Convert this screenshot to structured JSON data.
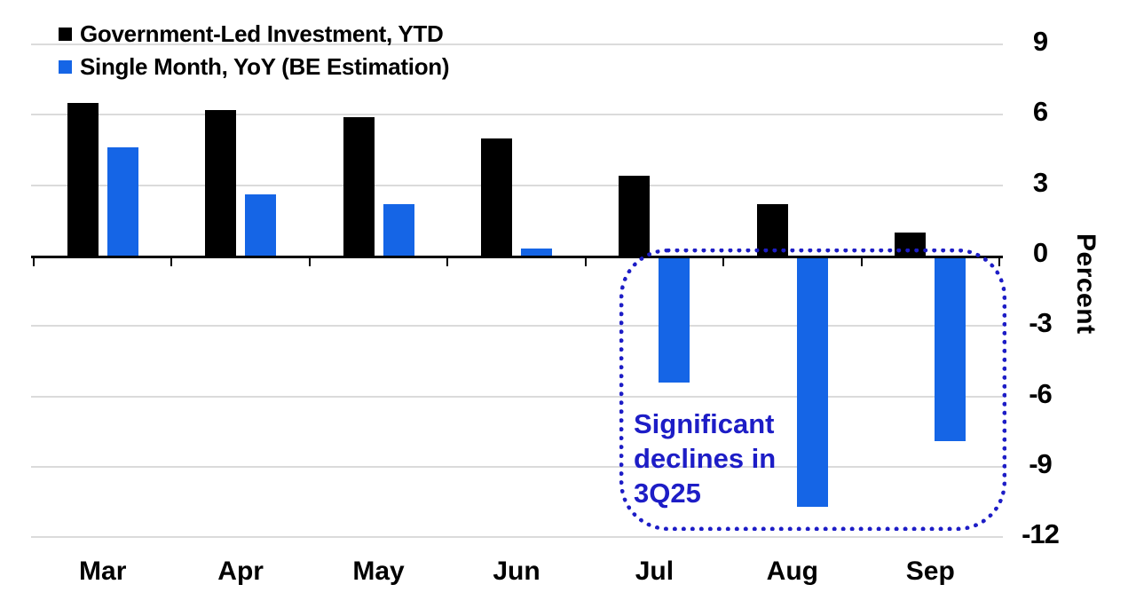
{
  "chart_data": {
    "type": "bar",
    "categories": [
      "Mar",
      "Apr",
      "May",
      "Jun",
      "Jul",
      "Aug",
      "Sep"
    ],
    "series": [
      {
        "name": "Government-Led Investment, YTD",
        "color": "#000000",
        "values": [
          6.5,
          6.2,
          5.9,
          5.0,
          3.4,
          2.2,
          1.0
        ]
      },
      {
        "name": "Single Month, YoY (BE Estimation)",
        "color": "#1565e6",
        "values": [
          4.6,
          2.6,
          2.2,
          0.3,
          -5.4,
          -10.7,
          -7.9
        ]
      }
    ],
    "title": "",
    "xlabel": "",
    "ylabel": "Percent",
    "ylim": [
      -12,
      9
    ],
    "yticks": [
      9,
      6,
      3,
      0,
      -3,
      -6,
      -9,
      -12
    ],
    "grid": true,
    "legend_position": "top-left",
    "annotation": {
      "lines": [
        "Significant",
        "declines in",
        "3Q25"
      ],
      "region": "Jul-Sep negative bars",
      "style": "blue dotted rounded rectangle"
    }
  },
  "legend": {
    "items": [
      {
        "label": "Government-Led Investment, YTD",
        "color": "#000000"
      },
      {
        "label": "Single Month, YoY (BE Estimation)",
        "color": "#1565e6"
      }
    ]
  },
  "y_axis": {
    "label": "Percent",
    "tick_labels": [
      "9",
      "6",
      "3",
      "0",
      "-3",
      "-6",
      "-9",
      "-12"
    ]
  },
  "x_axis": {
    "labels": [
      "Mar",
      "Apr",
      "May",
      "Jun",
      "Jul",
      "Aug",
      "Sep"
    ]
  },
  "annotation": {
    "line1": "Significant",
    "line2": "declines in",
    "line3": "3Q25"
  },
  "colors": {
    "bar_black": "#000000",
    "bar_blue": "#1565e6",
    "annotation_blue": "#1d1dc6",
    "gridline": "#dbdbdb",
    "axis": "#000000",
    "background": "#ffffff"
  }
}
